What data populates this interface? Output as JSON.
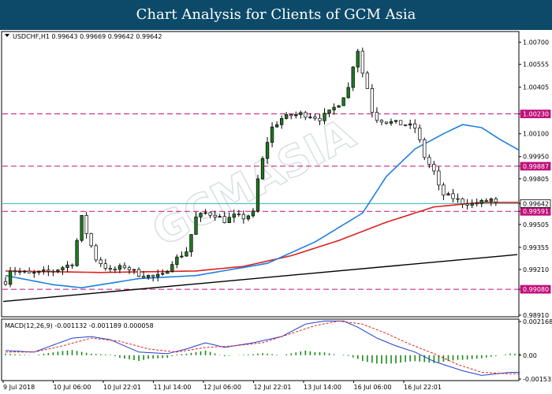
{
  "banner": {
    "title": "Chart Analysis for Clients of GCM Asia"
  },
  "chart_data": {
    "type": "candlestick",
    "symbol_header": "USDCHF,H1  0.99643 0.99669 0.99642 0.99642",
    "watermark": "GCMASIA",
    "ylim": [
      0.9891,
      1.0076
    ],
    "y_ticks": [
      "1.00700",
      "1.00555",
      "1.00405",
      "1.00230",
      "1.00100",
      "0.99950",
      "0.99887",
      "0.99805",
      "0.99642",
      "0.99591",
      "0.99505",
      "0.99355",
      "0.99210",
      "0.99080",
      "0.98910"
    ],
    "x_tick_labels": [
      "9 Jul 2018",
      "10 Jul 06:00",
      "10 Jul 22:01",
      "11 Jul 14:00",
      "12 Jul 06:00",
      "12 Jul 22:01",
      "13 Jul 14:00",
      "16 Jul 06:00",
      "16 Jul 22:01"
    ],
    "horizontal_levels": [
      {
        "value": 1.0023,
        "label": "1.00230",
        "color": "#c0107a",
        "style": "dashed"
      },
      {
        "value": 0.99887,
        "label": "0.99887",
        "color": "#c0107a",
        "style": "dashed"
      },
      {
        "value": 0.99591,
        "label": "0.99591",
        "color": "#c0107a",
        "style": "dashed"
      },
      {
        "value": 0.9908,
        "label": "0.99080",
        "color": "#c0107a",
        "style": "dashed"
      },
      {
        "value": 0.99642,
        "label": "0.99642",
        "color": "#33b5b5",
        "style": "solid",
        "current": true
      }
    ],
    "trendline": {
      "from": [
        0,
        0.99
      ],
      "to": [
        130,
        0.9937
      ],
      "color": "#000000"
    },
    "ma_fast": {
      "color": "#1e7fe0",
      "knots": [
        [
          0,
          0.9917
        ],
        [
          10,
          0.9911
        ],
        [
          16,
          0.9909
        ],
        [
          28,
          0.9915
        ],
        [
          40,
          0.9917
        ],
        [
          55,
          0.9925
        ],
        [
          65,
          0.9939
        ],
        [
          75,
          0.9958
        ],
        [
          80,
          0.9982
        ],
        [
          86,
          1.0
        ],
        [
          92,
          1.001
        ],
        [
          96,
          1.0016
        ],
        [
          100,
          1.0014
        ],
        [
          104,
          1.0006
        ],
        [
          108,
          0.9999
        ]
      ]
    },
    "ma_slow": {
      "color": "#e02020",
      "knots": [
        [
          0,
          0.992
        ],
        [
          20,
          0.9919
        ],
        [
          40,
          0.992
        ],
        [
          50,
          0.9923
        ],
        [
          60,
          0.993
        ],
        [
          70,
          0.994
        ],
        [
          80,
          0.9952
        ],
        [
          90,
          0.9962
        ],
        [
          100,
          0.9965
        ],
        [
          108,
          0.9965
        ]
      ]
    },
    "price_path": [
      [
        0,
        0.9913
      ],
      [
        1,
        0.9921
      ],
      [
        5,
        0.9918
      ],
      [
        10,
        0.992
      ],
      [
        14,
        0.9925
      ],
      [
        16,
        0.9955
      ],
      [
        17,
        0.9945
      ],
      [
        19,
        0.9928
      ],
      [
        22,
        0.992
      ],
      [
        25,
        0.9923
      ],
      [
        28,
        0.9918
      ],
      [
        31,
        0.9916
      ],
      [
        33,
        0.9917
      ],
      [
        35,
        0.9926
      ],
      [
        38,
        0.9933
      ],
      [
        40,
        0.9955
      ],
      [
        42,
        0.9958
      ],
      [
        44,
        0.9957
      ],
      [
        46,
        0.9953
      ],
      [
        48,
        0.9956
      ],
      [
        50,
        0.9955
      ],
      [
        52,
        0.9958
      ],
      [
        53,
        0.998
      ],
      [
        54,
        0.9993
      ],
      [
        55,
        1.0005
      ],
      [
        56,
        1.0014
      ],
      [
        58,
        1.002
      ],
      [
        60,
        1.0022
      ],
      [
        62,
        1.0023
      ],
      [
        64,
        1.0022
      ],
      [
        66,
        1.002
      ],
      [
        68,
        1.0024
      ],
      [
        70,
        1.003
      ],
      [
        72,
        1.004
      ],
      [
        73,
        1.0055
      ],
      [
        74,
        1.0065
      ],
      [
        75,
        1.005
      ],
      [
        76,
        1.004
      ],
      [
        77,
        1.0025
      ],
      [
        78,
        1.002
      ],
      [
        80,
        1.0018
      ],
      [
        82,
        1.0017
      ],
      [
        84,
        1.0016
      ],
      [
        86,
        1.0014
      ],
      [
        87,
        1.0005
      ],
      [
        88,
        0.9995
      ],
      [
        90,
        0.9985
      ],
      [
        91,
        0.9975
      ],
      [
        92,
        0.997
      ],
      [
        94,
        0.9968
      ],
      [
        96,
        0.9965
      ],
      [
        98,
        0.9964
      ],
      [
        100,
        0.9965
      ],
      [
        102,
        0.9967
      ],
      [
        103,
        0.9964
      ]
    ],
    "macd": {
      "header": "MACD(12,26,9) -0.001132 -0.001189 0.000058",
      "y_ticks": [
        "0.002168",
        "0.00",
        "-0.001533"
      ],
      "ylim": [
        -0.001533,
        0.002168
      ],
      "macd_color": "#1e3fd0",
      "signal_color": "#e02020",
      "hist_color": "#1a8a1a",
      "macd_knots": [
        [
          0,
          0.0003
        ],
        [
          6,
          0.0002
        ],
        [
          14,
          0.0011
        ],
        [
          18,
          0.0012
        ],
        [
          22,
          0.001
        ],
        [
          28,
          0.0002
        ],
        [
          34,
          0.0001
        ],
        [
          38,
          0.0004
        ],
        [
          42,
          0.0008
        ],
        [
          46,
          0.0005
        ],
        [
          52,
          0.0008
        ],
        [
          58,
          0.0012
        ],
        [
          63,
          0.002
        ],
        [
          67,
          0.0022
        ],
        [
          71,
          0.0022
        ],
        [
          74,
          0.0018
        ],
        [
          78,
          0.0011
        ],
        [
          82,
          0.0006
        ],
        [
          86,
          0.0002
        ],
        [
          90,
          -0.0004
        ],
        [
          96,
          -0.001
        ],
        [
          100,
          -0.0013
        ],
        [
          106,
          -0.0011
        ]
      ],
      "signal_knots": [
        [
          0,
          0.0002
        ],
        [
          6,
          0.0002
        ],
        [
          12,
          0.0006
        ],
        [
          18,
          0.0011
        ],
        [
          24,
          0.0009
        ],
        [
          30,
          0.0004
        ],
        [
          36,
          0.0002
        ],
        [
          42,
          0.0005
        ],
        [
          48,
          0.0006
        ],
        [
          54,
          0.0008
        ],
        [
          60,
          0.0014
        ],
        [
          65,
          0.0019
        ],
        [
          70,
          0.0022
        ],
        [
          75,
          0.002
        ],
        [
          80,
          0.0014
        ],
        [
          85,
          0.0007
        ],
        [
          90,
          0.0001
        ],
        [
          95,
          -0.0006
        ],
        [
          100,
          -0.0011
        ],
        [
          106,
          -0.0012
        ]
      ]
    }
  }
}
